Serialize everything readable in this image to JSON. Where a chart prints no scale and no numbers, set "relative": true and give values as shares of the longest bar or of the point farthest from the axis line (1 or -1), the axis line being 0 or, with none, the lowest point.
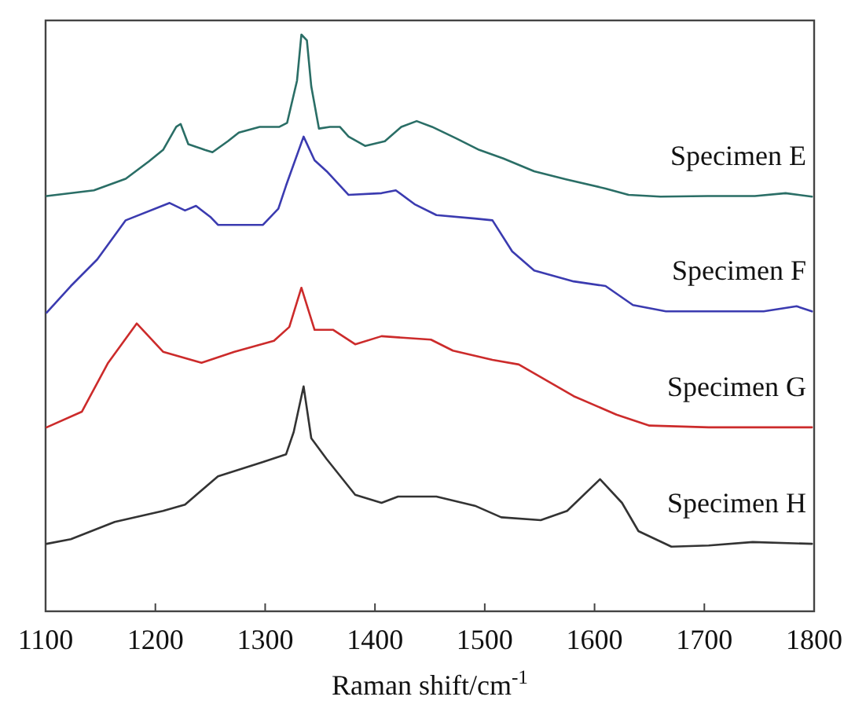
{
  "chart_data": {
    "type": "line",
    "relative": true,
    "xlabel": "Raman shift/cm$^{-1}$",
    "xlim": [
      1100,
      1800
    ],
    "xticks": [
      1100,
      1200,
      1300,
      1400,
      1500,
      1600,
      1700,
      1800
    ],
    "tick_labels": "x",
    "series": [
      {
        "name": "Specimen E",
        "color": "#2a6e66",
        "x": [
          1101,
          1144,
          1173,
          1194,
          1207,
          1219,
          1223,
          1230,
          1245,
          1252,
          1266,
          1276,
          1295,
          1313,
          1320,
          1329,
          1333,
          1338,
          1342,
          1349,
          1359,
          1368,
          1376,
          1391,
          1409,
          1424,
          1438,
          1452,
          1474,
          1495,
          1517,
          1545,
          1574,
          1610,
          1631,
          1660,
          1703,
          1746,
          1774,
          1798
        ],
        "values": [
          0.72,
          0.73,
          0.75,
          0.78,
          0.8,
          0.84,
          0.845,
          0.81,
          0.8,
          0.796,
          0.815,
          0.83,
          0.84,
          0.84,
          0.847,
          0.92,
          1.0,
          0.99,
          0.91,
          0.837,
          0.84,
          0.84,
          0.823,
          0.807,
          0.815,
          0.84,
          0.85,
          0.84,
          0.82,
          0.8,
          0.785,
          0.763,
          0.749,
          0.733,
          0.722,
          0.719,
          0.72,
          0.72,
          0.725,
          0.719
        ]
      },
      {
        "name": "Specimen F",
        "color": "#3b3bb0",
        "x": [
          1101,
          1123,
          1147,
          1173,
          1213,
          1227,
          1237,
          1250,
          1257,
          1298,
          1312,
          1319,
          1335,
          1345,
          1356,
          1376,
          1406,
          1419,
          1436,
          1456,
          1491,
          1507,
          1525,
          1545,
          1581,
          1610,
          1635,
          1665,
          1704,
          1754,
          1784,
          1798
        ],
        "values": [
          0.518,
          0.564,
          0.61,
          0.678,
          0.708,
          0.695,
          0.703,
          0.684,
          0.67,
          0.67,
          0.698,
          0.738,
          0.823,
          0.782,
          0.763,
          0.722,
          0.725,
          0.73,
          0.706,
          0.687,
          0.681,
          0.678,
          0.624,
          0.591,
          0.572,
          0.564,
          0.531,
          0.52,
          0.52,
          0.52,
          0.529,
          0.52
        ]
      },
      {
        "name": "Specimen G",
        "color": "#cc2b2b",
        "x": [
          1101,
          1133,
          1157,
          1183,
          1207,
          1242,
          1272,
          1308,
          1322,
          1333,
          1345,
          1362,
          1382,
          1406,
          1451,
          1471,
          1507,
          1531,
          1581,
          1620,
          1650,
          1704,
          1798
        ],
        "values": [
          0.319,
          0.346,
          0.431,
          0.499,
          0.45,
          0.431,
          0.45,
          0.469,
          0.493,
          0.561,
          0.488,
          0.488,
          0.463,
          0.477,
          0.471,
          0.452,
          0.436,
          0.428,
          0.373,
          0.341,
          0.322,
          0.319,
          0.319
        ]
      },
      {
        "name": "Specimen H",
        "color": "#333333",
        "x": [
          1101,
          1123,
          1163,
          1207,
          1227,
          1257,
          1298,
          1319,
          1326,
          1335,
          1342,
          1356,
          1382,
          1406,
          1421,
          1456,
          1491,
          1515,
          1551,
          1575,
          1605,
          1625,
          1640,
          1670,
          1704,
          1744,
          1798
        ],
        "values": [
          0.117,
          0.125,
          0.155,
          0.174,
          0.185,
          0.234,
          0.259,
          0.272,
          0.311,
          0.39,
          0.3,
          0.264,
          0.202,
          0.188,
          0.199,
          0.199,
          0.183,
          0.163,
          0.158,
          0.174,
          0.229,
          0.188,
          0.139,
          0.112,
          0.114,
          0.12,
          0.117
        ]
      }
    ]
  }
}
